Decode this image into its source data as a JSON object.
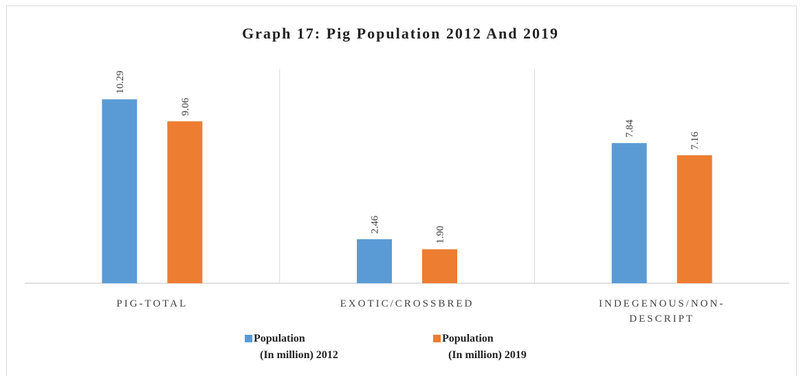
{
  "chart_data": {
    "type": "bar",
    "title": "Graph 17: Pig Population 2012 And 2019",
    "categories": [
      [
        "PIG-TOTAL"
      ],
      [
        "EXOTIC/CROSSBRED"
      ],
      [
        "INDEGENOUS/NON-",
        "DESCRIPT"
      ]
    ],
    "series": [
      {
        "name_lines": [
          "Population",
          "(In million) 2012"
        ],
        "color": "#5b9bd5",
        "values": [
          10.29,
          2.46,
          7.84
        ],
        "labels": [
          "10.29",
          "2.46",
          "7.84"
        ]
      },
      {
        "name_lines": [
          "Population",
          "(In million) 2019"
        ],
        "color": "#ed7d31",
        "values": [
          9.06,
          1.9,
          7.16
        ],
        "labels": [
          "9.06",
          "1.90",
          "7.16"
        ]
      }
    ],
    "grid": "vertical category separators only",
    "legend_position": "bottom",
    "ylim": [
      0,
      12
    ]
  }
}
